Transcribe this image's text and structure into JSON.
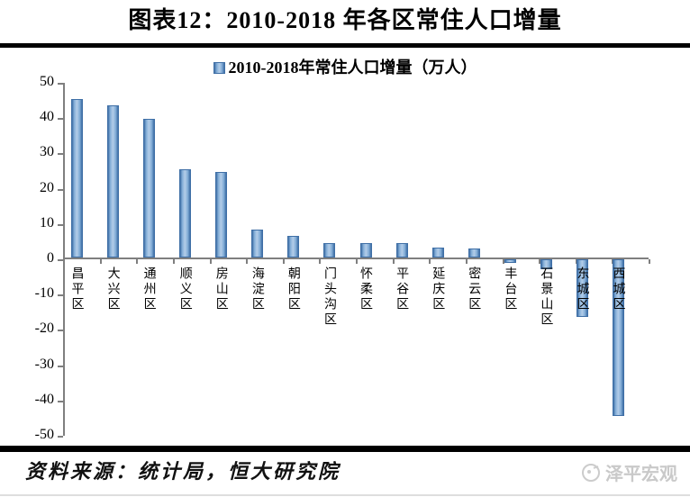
{
  "page": {
    "title": "图表12：2010-2018 年各区常住人口增量",
    "source_note": "资料来源：统计局，恒大研究院",
    "watermark_text": "泽平宏观"
  },
  "chart_data": {
    "type": "bar",
    "title": "图表12：2010-2018 年各区常住人口增量",
    "legend_label": "2010-2018年常住人口增量（万人）",
    "legend_position": "top-center",
    "categories": [
      "昌平区",
      "大兴区",
      "通州区",
      "顺义区",
      "房山区",
      "海淀区",
      "朝阳区",
      "门头沟区",
      "怀柔区",
      "平谷区",
      "延庆区",
      "密云区",
      "丰台区",
      "石景山区",
      "东城区",
      "西城区"
    ],
    "values": [
      44.9,
      43.0,
      39.4,
      25.0,
      24.3,
      7.8,
      6.0,
      4.1,
      4.1,
      4.0,
      2.8,
      2.5,
      -1.0,
      -2.8,
      -16.3,
      -44.3
    ],
    "ylabel": "",
    "xlabel": "",
    "ylim": [
      -50,
      50
    ],
    "yticks": [
      50,
      40,
      30,
      20,
      10,
      0,
      -10,
      -20,
      -30,
      -40,
      -50
    ],
    "grid": false,
    "bar_fill_color": "#84aed8",
    "bar_edge_color": "#3f6fa6",
    "axis_color": "#7f7f7f"
  }
}
